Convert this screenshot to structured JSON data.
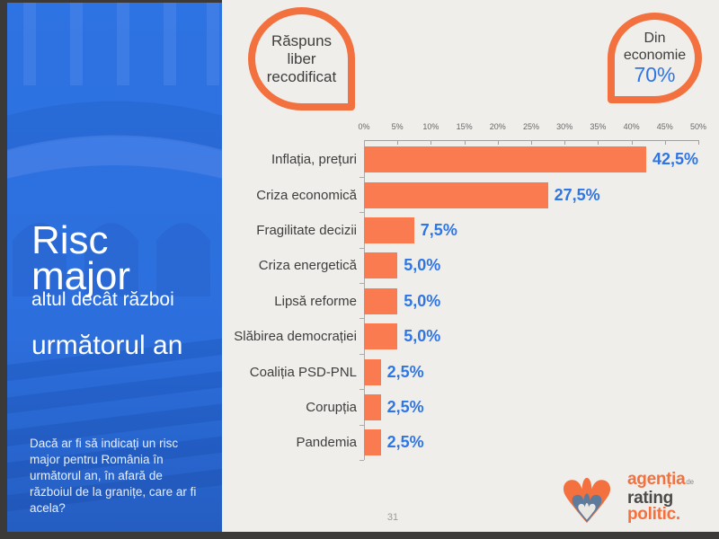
{
  "slide": {
    "page_number": "31"
  },
  "sidebar": {
    "title_line1": "Risc",
    "title_line2": "major",
    "subtitle": "altul decât război",
    "timeframe": "următorul an",
    "question": "Dacă ar fi să indicați un risc major pentru România în următorul an, în afară de războiul de la granițe, care ar fi acela?"
  },
  "badges": {
    "left": {
      "text": "Răspuns liber recodificat"
    },
    "right": {
      "label": "Din economie",
      "value": "70%"
    }
  },
  "chart_data": {
    "type": "bar",
    "orientation": "horizontal",
    "title": "",
    "xlabel": "",
    "ylabel": "",
    "xlim": [
      0,
      50
    ],
    "grid": false,
    "legend": "none",
    "categories": [
      "Inflația, prețuri",
      "Criza economică",
      "Fragilitate decizii",
      "Criza energetică",
      "Lipsă reforme",
      "Slăbirea democrației",
      "Coaliția PSD-PNL",
      "Corupția",
      "Pandemia"
    ],
    "values": [
      42.5,
      27.5,
      7.5,
      5.0,
      5.0,
      5.0,
      2.5,
      2.5,
      2.5
    ],
    "value_labels": [
      "42,5%",
      "27,5%",
      "7,5%",
      "5,0%",
      "5,0%",
      "5,0%",
      "2,5%",
      "2,5%",
      "2,5%"
    ],
    "axis_ticks": [
      "0%",
      "5%",
      "10%",
      "15%",
      "20%",
      "25%",
      "30%",
      "35%",
      "40%",
      "45%",
      "50%"
    ],
    "bar_color": "#fa7b50",
    "value_label_color": "#2e75e5"
  },
  "logo": {
    "line1": "agenția",
    "line1_suffix": "de",
    "line2": "rating",
    "line3": "politic."
  },
  "colors": {
    "accent_orange": "#f2713e",
    "accent_blue": "#2e75e5",
    "sidebar_blue": "#2e73e3",
    "background": "#efeeeb",
    "frame_dark": "#3b3a39"
  }
}
